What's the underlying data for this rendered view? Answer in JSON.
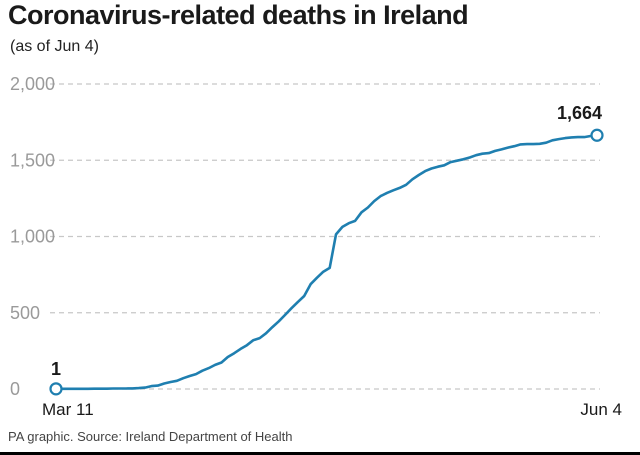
{
  "header": {
    "title": "Coronavirus-related deaths in Ireland",
    "subtitle": "(as of Jun 4)"
  },
  "footer": {
    "source": "PA graphic. Source: Ireland Department of Health"
  },
  "colors": {
    "line": "#1f7fb0",
    "grid": "#c8c8c8",
    "tick": "#9a9a9a"
  },
  "chart_data": {
    "type": "line",
    "title": "Coronavirus-related deaths in Ireland",
    "subtitle": "(as of Jun 4)",
    "xlabel": "",
    "ylabel": "",
    "ylim": [
      0,
      2000
    ],
    "yticks": [
      0,
      500,
      1000,
      1500,
      2000
    ],
    "ytick_labels": [
      "0",
      "500",
      "1,000",
      "1,500",
      "2,000"
    ],
    "x_start": "Mar 11",
    "x_end": "Jun 4",
    "xtick_labels": [
      "Mar 11",
      "Jun 4"
    ],
    "grid": true,
    "start_label": "1",
    "end_label": "1,664",
    "series": [
      {
        "values": [
          1,
          1,
          1,
          1,
          1,
          1,
          2,
          2,
          2,
          3,
          3,
          3,
          4,
          6,
          9,
          19,
          22,
          36,
          46,
          54,
          71,
          85,
          98,
          120,
          137,
          158,
          174,
          210,
          235,
          263,
          287,
          320,
          334,
          365,
          406,
          444,
          486,
          530,
          571,
          610,
          687,
          730,
          769,
          794,
          1014,
          1063,
          1087,
          1102,
          1159,
          1190,
          1232,
          1265,
          1286,
          1303,
          1319,
          1339,
          1375,
          1403,
          1429,
          1446,
          1458,
          1467,
          1488,
          1497,
          1506,
          1518,
          1533,
          1543,
          1547,
          1561,
          1571,
          1583,
          1592,
          1604,
          1606,
          1606,
          1608,
          1615,
          1631,
          1639,
          1645,
          1650,
          1652,
          1652,
          1659,
          1664
        ]
      }
    ]
  }
}
